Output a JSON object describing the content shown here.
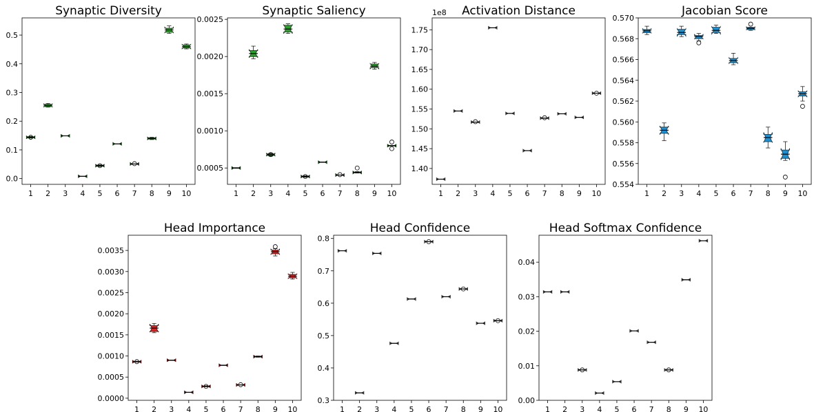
{
  "chart_data": [
    {
      "type": "box",
      "title": "Synaptic Diversity",
      "categories": [
        "1",
        "2",
        "3",
        "4",
        "5",
        "6",
        "7",
        "8",
        "9",
        "10"
      ],
      "ylim": [
        -0.02,
        0.56
      ],
      "yticks": [
        0.0,
        0.1,
        0.2,
        0.3,
        0.4,
        0.5
      ],
      "ytick_labels": [
        "0.0",
        "0.1",
        "0.2",
        "0.3",
        "0.4",
        "0.5"
      ],
      "offset_label": "",
      "color": "#2ca02c",
      "boxes": [
        {
          "min": 0.141,
          "q1": 0.142,
          "median": 0.144,
          "q3": 0.146,
          "max": 0.147,
          "outliers": [
            0.144
          ]
        },
        {
          "min": 0.249,
          "q1": 0.251,
          "median": 0.255,
          "q3": 0.259,
          "max": 0.262,
          "outliers": []
        },
        {
          "min": 0.149,
          "q1": 0.149,
          "median": 0.149,
          "q3": 0.149,
          "max": 0.149,
          "outliers": []
        },
        {
          "min": 0.008,
          "q1": 0.008,
          "median": 0.008,
          "q3": 0.008,
          "max": 0.008,
          "outliers": []
        },
        {
          "min": 0.042,
          "q1": 0.043,
          "median": 0.045,
          "q3": 0.047,
          "max": 0.048,
          "outliers": [
            0.045
          ]
        },
        {
          "min": 0.121,
          "q1": 0.121,
          "median": 0.121,
          "q3": 0.121,
          "max": 0.121,
          "outliers": []
        },
        {
          "min": 0.051,
          "q1": 0.051,
          "median": 0.051,
          "q3": 0.051,
          "max": 0.051,
          "outliers": [
            0.052
          ]
        },
        {
          "min": 0.136,
          "q1": 0.138,
          "median": 0.14,
          "q3": 0.142,
          "max": 0.144,
          "outliers": []
        },
        {
          "min": 0.506,
          "q1": 0.51,
          "median": 0.518,
          "q3": 0.524,
          "max": 0.532,
          "outliers": []
        },
        {
          "min": 0.452,
          "q1": 0.455,
          "median": 0.46,
          "q3": 0.466,
          "max": 0.469,
          "outliers": []
        }
      ]
    },
    {
      "type": "box",
      "title": "Synaptic Saliency",
      "categories": [
        "1",
        "2",
        "3",
        "4",
        "5",
        "6",
        "7",
        "8",
        "9",
        "10"
      ],
      "ylim": [
        0.00028,
        0.00252
      ],
      "yticks": [
        0.0005,
        0.001,
        0.0015,
        0.002,
        0.0025
      ],
      "ytick_labels": [
        "0.0005",
        "0.0010",
        "0.0015",
        "0.0020",
        "0.0025"
      ],
      "offset_label": "",
      "color": "#2ca02c",
      "boxes": [
        {
          "min": 0.000495,
          "q1": 0.000498,
          "median": 0.0005,
          "q3": 0.000503,
          "max": 0.000505,
          "outliers": []
        },
        {
          "min": 0.00197,
          "q1": 0.002,
          "median": 0.00204,
          "q3": 0.00208,
          "max": 0.00214,
          "outliers": []
        },
        {
          "min": 0.00066,
          "q1": 0.000668,
          "median": 0.00068,
          "q3": 0.000692,
          "max": 0.0007,
          "outliers": [
            0.00068
          ]
        },
        {
          "min": 0.00231,
          "q1": 0.00233,
          "median": 0.00237,
          "q3": 0.00242,
          "max": 0.00244,
          "outliers": []
        },
        {
          "min": 0.000375,
          "q1": 0.00038,
          "median": 0.000385,
          "q3": 0.000392,
          "max": 0.000396,
          "outliers": [
            0.000385
          ]
        },
        {
          "min": 0.000575,
          "q1": 0.000576,
          "median": 0.000578,
          "q3": 0.00058,
          "max": 0.000582,
          "outliers": []
        },
        {
          "min": 0.000405,
          "q1": 0.000405,
          "median": 0.000405,
          "q3": 0.000405,
          "max": 0.000405,
          "outliers": [
            0.00041
          ]
        },
        {
          "min": 0.000432,
          "q1": 0.000436,
          "median": 0.00044,
          "q3": 0.000445,
          "max": 0.000452,
          "outliers": [
            0.0005
          ]
        },
        {
          "min": 0.00183,
          "q1": 0.00185,
          "median": 0.00187,
          "q3": 0.0019,
          "max": 0.00192,
          "outliers": []
        },
        {
          "min": 0.000795,
          "q1": 0.000798,
          "median": 0.0008,
          "q3": 0.000802,
          "max": 0.000805,
          "outliers": [
            0.00085,
            0.00076
          ]
        }
      ]
    },
    {
      "type": "box",
      "title": "Activation Distance",
      "categories": [
        "1",
        "2",
        "3",
        "4",
        "5",
        "6",
        "7",
        "8",
        "9",
        "10"
      ],
      "ylim": [
        1.36,
        1.78
      ],
      "yticks": [
        1.4,
        1.45,
        1.5,
        1.55,
        1.6,
        1.65,
        1.7,
        1.75
      ],
      "ytick_labels": [
        "1.40",
        "1.45",
        "1.50",
        "1.55",
        "1.60",
        "1.65",
        "1.70",
        "1.75"
      ],
      "offset_label": "1e8",
      "color": "#aaaaaa",
      "boxes": [
        {
          "min": 1.373,
          "q1": 1.373,
          "median": 1.373,
          "q3": 1.373,
          "max": 1.373,
          "outliers": []
        },
        {
          "min": 1.545,
          "q1": 1.545,
          "median": 1.545,
          "q3": 1.545,
          "max": 1.545,
          "outliers": []
        },
        {
          "min": 1.517,
          "q1": 1.517,
          "median": 1.517,
          "q3": 1.517,
          "max": 1.517,
          "outliers": [
            1.518
          ]
        },
        {
          "min": 1.755,
          "q1": 1.755,
          "median": 1.755,
          "q3": 1.755,
          "max": 1.755,
          "outliers": []
        },
        {
          "min": 1.539,
          "q1": 1.539,
          "median": 1.539,
          "q3": 1.539,
          "max": 1.539,
          "outliers": []
        },
        {
          "min": 1.445,
          "q1": 1.445,
          "median": 1.445,
          "q3": 1.445,
          "max": 1.445,
          "outliers": []
        },
        {
          "min": 1.527,
          "q1": 1.527,
          "median": 1.527,
          "q3": 1.527,
          "max": 1.527,
          "outliers": [
            1.528
          ]
        },
        {
          "min": 1.538,
          "q1": 1.538,
          "median": 1.538,
          "q3": 1.538,
          "max": 1.538,
          "outliers": []
        },
        {
          "min": 1.529,
          "q1": 1.529,
          "median": 1.529,
          "q3": 1.529,
          "max": 1.529,
          "outliers": []
        },
        {
          "min": 1.59,
          "q1": 1.59,
          "median": 1.59,
          "q3": 1.59,
          "max": 1.59,
          "outliers": [
            1.59
          ]
        }
      ]
    },
    {
      "type": "box",
      "title": "Jacobian Score",
      "categories": [
        "1",
        "2",
        "3",
        "4",
        "5",
        "6",
        "7",
        "8",
        "9",
        "10"
      ],
      "ylim": [
        0.554,
        0.57
      ],
      "yticks": [
        0.554,
        0.556,
        0.558,
        0.56,
        0.562,
        0.564,
        0.566,
        0.568,
        0.57
      ],
      "ytick_labels": [
        "0.554",
        "0.556",
        "0.558",
        "0.560",
        "0.562",
        "0.564",
        "0.566",
        "0.568",
        "0.570"
      ],
      "offset_label": "",
      "color": "#1f8fcf",
      "boxes": [
        {
          "min": 0.5684,
          "q1": 0.56858,
          "median": 0.56875,
          "q3": 0.56888,
          "max": 0.5692,
          "outliers": []
        },
        {
          "min": 0.5582,
          "q1": 0.5589,
          "median": 0.5592,
          "q3": 0.5595,
          "max": 0.5599,
          "outliers": []
        },
        {
          "min": 0.5682,
          "q1": 0.5684,
          "median": 0.5686,
          "q3": 0.5689,
          "max": 0.5692,
          "outliers": []
        },
        {
          "min": 0.5678,
          "q1": 0.568,
          "median": 0.5682,
          "q3": 0.5683,
          "max": 0.5685,
          "outliers": [
            0.5676
          ]
        },
        {
          "min": 0.5685,
          "q1": 0.5686,
          "median": 0.5688,
          "q3": 0.5691,
          "max": 0.5693,
          "outliers": []
        },
        {
          "min": 0.5655,
          "q1": 0.5657,
          "median": 0.5659,
          "q3": 0.5661,
          "max": 0.5666,
          "outliers": []
        },
        {
          "min": 0.5688,
          "q1": 0.56888,
          "median": 0.569,
          "q3": 0.56908,
          "max": 0.5691,
          "outliers": [
            0.5694
          ]
        },
        {
          "min": 0.5575,
          "q1": 0.5581,
          "median": 0.5585,
          "q3": 0.5588,
          "max": 0.5595,
          "outliers": []
        },
        {
          "min": 0.5563,
          "q1": 0.5565,
          "median": 0.5569,
          "q3": 0.5573,
          "max": 0.5581,
          "outliers": [
            0.5547
          ]
        },
        {
          "min": 0.562,
          "q1": 0.5625,
          "median": 0.5627,
          "q3": 0.5629,
          "max": 0.5634,
          "outliers": [
            0.5615
          ]
        }
      ]
    },
    {
      "type": "box",
      "title": "Head Importance",
      "categories": [
        "1",
        "2",
        "3",
        "4",
        "5",
        "6",
        "7",
        "8",
        "9",
        "10"
      ],
      "ylim": [
        -5e-05,
        0.00386
      ],
      "yticks": [
        0.0,
        0.0005,
        0.001,
        0.0015,
        0.002,
        0.0025,
        0.003,
        0.0035
      ],
      "ytick_labels": [
        "0.0000",
        "0.0005",
        "0.0010",
        "0.0015",
        "0.0020",
        "0.0025",
        "0.0030",
        "0.0035"
      ],
      "offset_label": "",
      "color": "#d62728",
      "boxes": [
        {
          "min": 0.000855,
          "q1": 0.00086,
          "median": 0.000865,
          "q3": 0.00087,
          "max": 0.000875,
          "outliers": [
            0.000865
          ]
        },
        {
          "min": 0.00155,
          "q1": 0.00158,
          "median": 0.00166,
          "q3": 0.00172,
          "max": 0.00177,
          "outliers": []
        },
        {
          "min": 0.000895,
          "q1": 0.000898,
          "median": 0.0009,
          "q3": 0.000903,
          "max": 0.000905,
          "outliers": []
        },
        {
          "min": 0.00014,
          "q1": 0.00014,
          "median": 0.00014,
          "q3": 0.00014,
          "max": 0.00014,
          "outliers": []
        },
        {
          "min": 0.00027,
          "q1": 0.000275,
          "median": 0.00028,
          "q3": 0.000288,
          "max": 0.000295,
          "outliers": [
            0.00028
          ]
        },
        {
          "min": 0.000775,
          "q1": 0.000778,
          "median": 0.00078,
          "q3": 0.000782,
          "max": 0.000785,
          "outliers": []
        },
        {
          "min": 0.000315,
          "q1": 0.000315,
          "median": 0.000315,
          "q3": 0.000315,
          "max": 0.000315,
          "outliers": [
            0.00032
          ]
        },
        {
          "min": 0.00097,
          "q1": 0.000978,
          "median": 0.000985,
          "q3": 0.000992,
          "max": 0.001,
          "outliers": []
        },
        {
          "min": 0.00337,
          "q1": 0.00342,
          "median": 0.00347,
          "q3": 0.00351,
          "max": 0.00354,
          "outliers": [
            0.00359
          ]
        },
        {
          "min": 0.00282,
          "q1": 0.00285,
          "median": 0.00289,
          "q3": 0.00293,
          "max": 0.00298,
          "outliers": []
        }
      ]
    },
    {
      "type": "box",
      "title": "Head Confidence",
      "categories": [
        "1",
        "2",
        "3",
        "4",
        "5",
        "6",
        "7",
        "8",
        "9",
        "10"
      ],
      "ylim": [
        0.3,
        0.81
      ],
      "yticks": [
        0.3,
        0.4,
        0.5,
        0.6,
        0.7,
        0.8
      ],
      "ytick_labels": [
        "0.3",
        "0.4",
        "0.5",
        "0.6",
        "0.7",
        "0.8"
      ],
      "offset_label": "",
      "color": "#aaaaaa",
      "boxes": [
        {
          "min": 0.762,
          "q1": 0.762,
          "median": 0.762,
          "q3": 0.762,
          "max": 0.762,
          "outliers": []
        },
        {
          "min": 0.323,
          "q1": 0.323,
          "median": 0.323,
          "q3": 0.323,
          "max": 0.323,
          "outliers": []
        },
        {
          "min": 0.754,
          "q1": 0.754,
          "median": 0.754,
          "q3": 0.754,
          "max": 0.754,
          "outliers": []
        },
        {
          "min": 0.476,
          "q1": 0.476,
          "median": 0.476,
          "q3": 0.476,
          "max": 0.476,
          "outliers": []
        },
        {
          "min": 0.613,
          "q1": 0.613,
          "median": 0.613,
          "q3": 0.613,
          "max": 0.613,
          "outliers": []
        },
        {
          "min": 0.79,
          "q1": 0.79,
          "median": 0.79,
          "q3": 0.79,
          "max": 0.79,
          "outliers": [
            0.79
          ]
        },
        {
          "min": 0.62,
          "q1": 0.62,
          "median": 0.62,
          "q3": 0.62,
          "max": 0.62,
          "outliers": []
        },
        {
          "min": 0.644,
          "q1": 0.644,
          "median": 0.644,
          "q3": 0.644,
          "max": 0.644,
          "outliers": [
            0.644
          ]
        },
        {
          "min": 0.538,
          "q1": 0.538,
          "median": 0.538,
          "q3": 0.538,
          "max": 0.538,
          "outliers": []
        },
        {
          "min": 0.546,
          "q1": 0.546,
          "median": 0.546,
          "q3": 0.546,
          "max": 0.546,
          "outliers": [
            0.546
          ]
        }
      ]
    },
    {
      "type": "box",
      "title": "Head Softmax Confidence",
      "categories": [
        "1",
        "2",
        "3",
        "4",
        "5",
        "6",
        "7",
        "8",
        "9",
        "10"
      ],
      "ylim": [
        0.0,
        0.0478
      ],
      "yticks": [
        0.0,
        0.01,
        0.02,
        0.03,
        0.04
      ],
      "ytick_labels": [
        "0.00",
        "0.01",
        "0.02",
        "0.03",
        "0.04"
      ],
      "offset_label": "",
      "color": "#aaaaaa",
      "boxes": [
        {
          "min": 0.0314,
          "q1": 0.0314,
          "median": 0.0314,
          "q3": 0.0314,
          "max": 0.0314,
          "outliers": []
        },
        {
          "min": 0.0314,
          "q1": 0.0314,
          "median": 0.0314,
          "q3": 0.0314,
          "max": 0.0314,
          "outliers": []
        },
        {
          "min": 0.0088,
          "q1": 0.0088,
          "median": 0.0088,
          "q3": 0.0088,
          "max": 0.0088,
          "outliers": [
            0.0088
          ]
        },
        {
          "min": 0.0021,
          "q1": 0.0021,
          "median": 0.0021,
          "q3": 0.0021,
          "max": 0.0021,
          "outliers": []
        },
        {
          "min": 0.0054,
          "q1": 0.0054,
          "median": 0.0054,
          "q3": 0.0054,
          "max": 0.0054,
          "outliers": []
        },
        {
          "min": 0.0201,
          "q1": 0.0201,
          "median": 0.0201,
          "q3": 0.0201,
          "max": 0.0201,
          "outliers": []
        },
        {
          "min": 0.0168,
          "q1": 0.0168,
          "median": 0.0168,
          "q3": 0.0168,
          "max": 0.0168,
          "outliers": []
        },
        {
          "min": 0.0088,
          "q1": 0.0088,
          "median": 0.0088,
          "q3": 0.0088,
          "max": 0.0088,
          "outliers": [
            0.0088
          ]
        },
        {
          "min": 0.0349,
          "q1": 0.0349,
          "median": 0.0349,
          "q3": 0.0349,
          "max": 0.0349,
          "outliers": []
        },
        {
          "min": 0.0462,
          "q1": 0.0462,
          "median": 0.0462,
          "q3": 0.0462,
          "max": 0.0462,
          "outliers": []
        }
      ]
    }
  ]
}
